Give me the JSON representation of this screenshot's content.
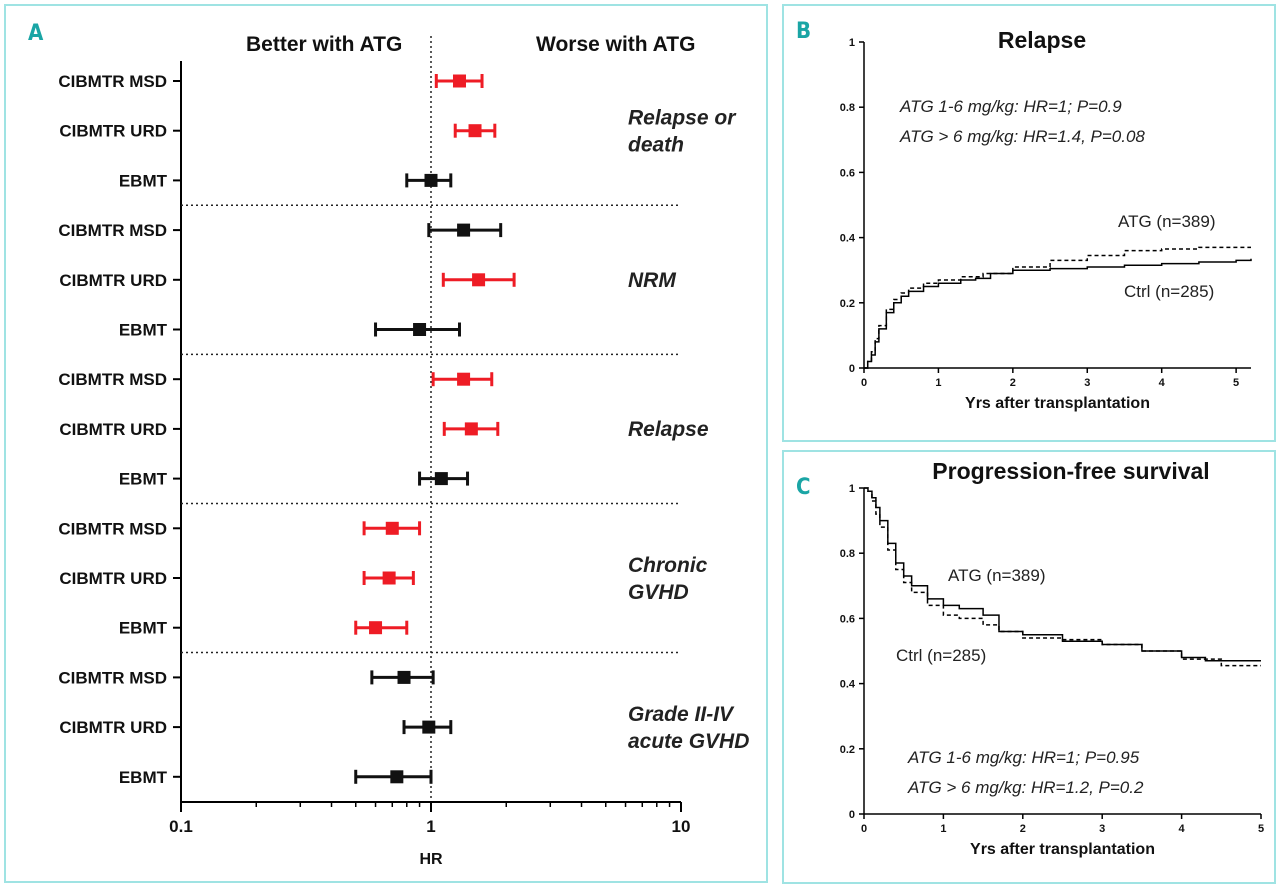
{
  "chart_data": [
    {
      "panel": "A",
      "type": "forest",
      "header_left": "Better with ATG",
      "header_right": "Worse with ATG",
      "xlabel": "HR",
      "x_scale": "log",
      "xlim": [
        0.1,
        10
      ],
      "x_ticks": [
        "0.1",
        "1",
        "10"
      ],
      "reference": 1,
      "colors": {
        "significant": "#ee1c25",
        "nonsignificant": "#111111"
      },
      "groups": [
        {
          "name": "Relapse or death",
          "name_lines": [
            "Relapse or",
            "death"
          ],
          "rows": [
            {
              "label": "CIBMTR MSD",
              "hr": 1.3,
              "lo": 1.05,
              "hi": 1.6,
              "significant": true
            },
            {
              "label": "CIBMTR URD",
              "hr": 1.5,
              "lo": 1.25,
              "hi": 1.8,
              "significant": true
            },
            {
              "label": "EBMT",
              "hr": 1.0,
              "lo": 0.8,
              "hi": 1.2,
              "significant": false
            }
          ]
        },
        {
          "name": "NRM",
          "name_lines": [
            "NRM"
          ],
          "rows": [
            {
              "label": "CIBMTR MSD",
              "hr": 1.35,
              "lo": 0.98,
              "hi": 1.9,
              "significant": false
            },
            {
              "label": "CIBMTR URD",
              "hr": 1.55,
              "lo": 1.12,
              "hi": 2.15,
              "significant": true
            },
            {
              "label": "EBMT",
              "hr": 0.9,
              "lo": 0.6,
              "hi": 1.3,
              "significant": false
            }
          ]
        },
        {
          "name": "Relapse",
          "name_lines": [
            "Relapse"
          ],
          "rows": [
            {
              "label": "CIBMTR MSD",
              "hr": 1.35,
              "lo": 1.02,
              "hi": 1.75,
              "significant": true
            },
            {
              "label": "CIBMTR URD",
              "hr": 1.45,
              "lo": 1.13,
              "hi": 1.85,
              "significant": true
            },
            {
              "label": "EBMT",
              "hr": 1.1,
              "lo": 0.9,
              "hi": 1.4,
              "significant": false
            }
          ]
        },
        {
          "name": "Chronic GVHD",
          "name_lines": [
            "Chronic",
            "GVHD"
          ],
          "rows": [
            {
              "label": "CIBMTR MSD",
              "hr": 0.7,
              "lo": 0.54,
              "hi": 0.9,
              "significant": true
            },
            {
              "label": "CIBMTR URD",
              "hr": 0.68,
              "lo": 0.54,
              "hi": 0.85,
              "significant": true
            },
            {
              "label": "EBMT",
              "hr": 0.6,
              "lo": 0.5,
              "hi": 0.8,
              "significant": true
            }
          ]
        },
        {
          "name": "Grade II-IV acute GVHD",
          "name_lines": [
            "Grade II-IV",
            "acute GVHD"
          ],
          "rows": [
            {
              "label": "CIBMTR MSD",
              "hr": 0.78,
              "lo": 0.58,
              "hi": 1.02,
              "significant": false
            },
            {
              "label": "CIBMTR URD",
              "hr": 0.98,
              "lo": 0.78,
              "hi": 1.2,
              "significant": false
            },
            {
              "label": "EBMT",
              "hr": 0.73,
              "lo": 0.5,
              "hi": 1.0,
              "significant": false
            }
          ]
        }
      ]
    },
    {
      "panel": "B",
      "type": "line",
      "title": "Relapse",
      "xlabel": "Yrs after transplantation",
      "xlim": [
        0,
        5.2
      ],
      "ylim": [
        0,
        1
      ],
      "x_ticks": [
        0,
        1,
        2,
        3,
        4,
        5
      ],
      "y_ticks": [
        0,
        0.2,
        0.4,
        0.6,
        0.8,
        1
      ],
      "y_tick_labels": [
        "0",
        "0.2",
        "0.4",
        "0.6",
        "0.8",
        "1"
      ],
      "annotations": [
        "ATG 1-6 mg/kg: HR=1; P=0.9",
        "ATG > 6 mg/kg: HR=1.4, P=0.08"
      ],
      "series": [
        {
          "name": "ATG (n=389)",
          "style": "dashed",
          "x": [
            0,
            0.05,
            0.1,
            0.15,
            0.2,
            0.3,
            0.4,
            0.5,
            0.6,
            0.8,
            1.0,
            1.3,
            1.6,
            2.0,
            2.5,
            3.0,
            3.5,
            4.0,
            4.5,
            5.0,
            5.2
          ],
          "y": [
            0,
            0.02,
            0.05,
            0.09,
            0.13,
            0.18,
            0.21,
            0.23,
            0.245,
            0.26,
            0.27,
            0.28,
            0.29,
            0.31,
            0.33,
            0.345,
            0.36,
            0.365,
            0.37,
            0.37,
            0.37
          ]
        },
        {
          "name": "Ctrl (n=285)",
          "style": "solid",
          "x": [
            0,
            0.05,
            0.1,
            0.15,
            0.2,
            0.3,
            0.4,
            0.5,
            0.6,
            0.8,
            1.0,
            1.3,
            1.5,
            1.7,
            2.0,
            2.5,
            3.0,
            3.5,
            4.0,
            4.5,
            5.0,
            5.2
          ],
          "y": [
            0,
            0.02,
            0.04,
            0.08,
            0.12,
            0.17,
            0.2,
            0.22,
            0.235,
            0.25,
            0.26,
            0.27,
            0.275,
            0.29,
            0.3,
            0.305,
            0.31,
            0.315,
            0.32,
            0.325,
            0.33,
            0.335
          ]
        }
      ]
    },
    {
      "panel": "C",
      "type": "line",
      "title": "Progression-free survival",
      "xlabel": "Yrs after transplantation",
      "xlim": [
        0,
        5
      ],
      "ylim": [
        0,
        1
      ],
      "x_ticks": [
        0,
        1,
        2,
        3,
        4,
        5
      ],
      "y_ticks": [
        0,
        0.2,
        0.4,
        0.6,
        0.8,
        1
      ],
      "y_tick_labels": [
        "0",
        "0.2",
        "0.4",
        "0.6",
        "0.8",
        "1"
      ],
      "annotations": [
        "ATG 1-6 mg/kg: HR=1; P=0.95",
        "ATG > 6 mg/kg: HR=1.2, P=0.2"
      ],
      "series": [
        {
          "name": "ATG (n=389)",
          "style": "solid",
          "x": [
            0,
            0.05,
            0.1,
            0.15,
            0.2,
            0.3,
            0.4,
            0.5,
            0.6,
            0.8,
            1.0,
            1.2,
            1.5,
            1.7,
            2.0,
            2.5,
            3.0,
            3.5,
            4.0,
            4.3,
            5.0
          ],
          "y": [
            1.0,
            0.99,
            0.97,
            0.94,
            0.9,
            0.83,
            0.77,
            0.73,
            0.7,
            0.66,
            0.64,
            0.63,
            0.61,
            0.56,
            0.55,
            0.53,
            0.52,
            0.5,
            0.48,
            0.47,
            0.47
          ]
        },
        {
          "name": "Ctrl (n=285)",
          "style": "dashed",
          "x": [
            0,
            0.05,
            0.1,
            0.15,
            0.2,
            0.3,
            0.4,
            0.5,
            0.6,
            0.8,
            1.0,
            1.2,
            1.5,
            1.7,
            2.0,
            2.5,
            3.0,
            3.5,
            4.0,
            4.5,
            5.0
          ],
          "y": [
            1.0,
            0.99,
            0.96,
            0.92,
            0.88,
            0.81,
            0.75,
            0.71,
            0.68,
            0.64,
            0.61,
            0.6,
            0.58,
            0.56,
            0.54,
            0.535,
            0.52,
            0.5,
            0.475,
            0.455,
            0.455
          ]
        }
      ]
    }
  ]
}
